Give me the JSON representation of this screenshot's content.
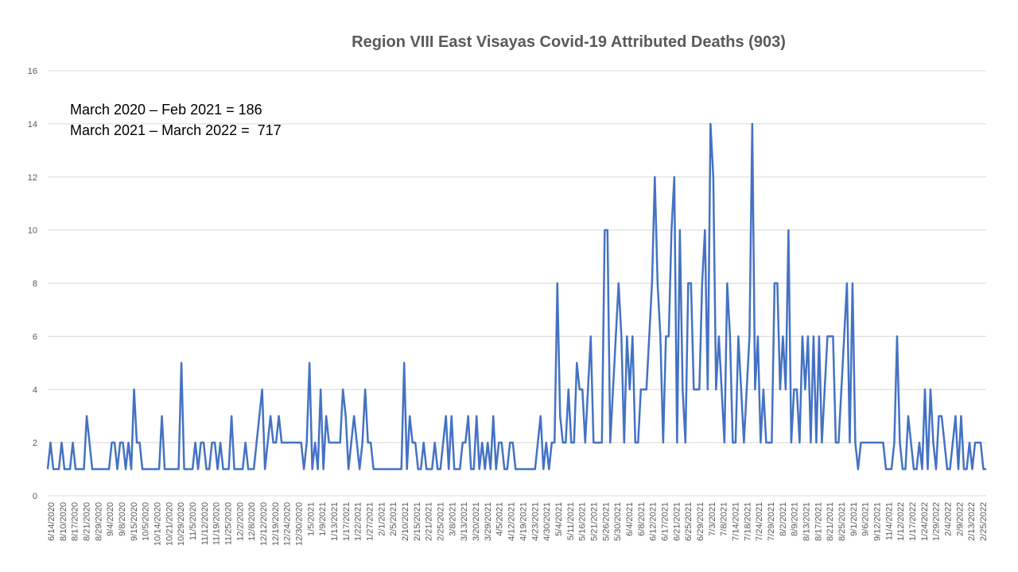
{
  "chart_data": {
    "type": "line",
    "title": "Region VIII East Visayas  Covid-19 Attributed Deaths (903)",
    "annotations": [
      "March 2020 – Feb 2021 = 186",
      "March 2021 – March 2022 =  717"
    ],
    "ylim": [
      0,
      16
    ],
    "yticks": [
      0,
      2,
      4,
      6,
      8,
      10,
      12,
      14,
      16
    ],
    "grid": true,
    "legend": "none",
    "line_color": "#4472C4",
    "x_tick_labels": [
      "6/14/2020",
      "8/10/2020",
      "8/17/2020",
      "8/21/2020",
      "8/29/2020",
      "9/4/2020",
      "9/8/2020",
      "9/15/2020",
      "10/5/2020",
      "10/14/2020",
      "10/21/2020",
      "10/29/2020",
      "11/5/2020",
      "11/12/2020",
      "11/19/2020",
      "11/25/2020",
      "12/2/2020",
      "12/8/2020",
      "12/12/2020",
      "12/19/2020",
      "12/24/2020",
      "12/30/2020",
      "1/5/2021",
      "1/9/2021",
      "1/13/2021",
      "1/17/2021",
      "1/22/2021",
      "1/27/2021",
      "2/1/2021",
      "2/5/2021",
      "2/10/2021",
      "2/15/2021",
      "2/21/2021",
      "2/25/2021",
      "3/8/2021",
      "3/13/2021",
      "3/20/2021",
      "3/29/2021",
      "4/5/2021",
      "4/12/2021",
      "4/19/2021",
      "4/23/2021",
      "4/30/2021",
      "5/4/2021",
      "5/11/2021",
      "5/16/2021",
      "5/21/2021",
      "5/26/2021",
      "5/30/2021",
      "6/4/2021",
      "6/8/2021",
      "6/12/2021",
      "6/17/2021",
      "6/21/2021",
      "6/25/2021",
      "6/29/2021",
      "7/3/2021",
      "7/8/2021",
      "7/14/2021",
      "7/18/2021",
      "7/24/2021",
      "7/29/2021",
      "8/2/2021",
      "8/9/2021",
      "8/13/2021",
      "8/17/2021",
      "8/21/2021",
      "8/25/2021",
      "9/1/2021",
      "9/6/2021",
      "9/12/2021",
      "11/4/2021",
      "1/12/2022",
      "1/17/2022",
      "1/24/2022",
      "1/29/2022",
      "2/4/2022",
      "2/9/2022",
      "2/13/2022",
      "2/25/2022"
    ],
    "values": [
      1,
      2,
      1,
      1,
      1,
      2,
      1,
      1,
      1,
      2,
      1,
      1,
      1,
      1,
      3,
      2,
      1,
      1,
      1,
      1,
      1,
      1,
      1,
      2,
      2,
      1,
      2,
      2,
      1,
      2,
      1,
      4,
      2,
      2,
      1,
      1,
      1,
      1,
      1,
      1,
      1,
      3,
      1,
      1,
      1,
      1,
      1,
      1,
      5,
      1,
      1,
      1,
      1,
      2,
      1,
      2,
      2,
      1,
      1,
      2,
      2,
      1,
      2,
      1,
      1,
      1,
      3,
      1,
      1,
      1,
      1,
      2,
      1,
      1,
      1,
      2,
      3,
      4,
      1,
      2,
      3,
      2,
      2,
      3,
      2,
      2,
      2,
      2,
      2,
      2,
      2,
      2,
      1,
      2,
      5,
      1,
      2,
      1,
      4,
      1,
      3,
      2,
      2,
      2,
      2,
      2,
      4,
      3,
      1,
      2,
      3,
      2,
      1,
      2,
      4,
      2,
      2,
      1,
      1,
      1,
      1,
      1,
      1,
      1,
      1,
      1,
      1,
      1,
      5,
      1,
      3,
      2,
      2,
      1,
      1,
      2,
      1,
      1,
      1,
      2,
      1,
      1,
      2,
      3,
      1,
      3,
      1,
      1,
      1,
      2,
      2,
      3,
      1,
      1,
      3,
      1,
      2,
      1,
      2,
      1,
      3,
      1,
      2,
      2,
      1,
      1,
      2,
      2,
      1,
      1,
      1,
      1,
      1,
      1,
      1,
      1,
      2,
      3,
      1,
      2,
      1,
      2,
      2,
      8,
      3,
      2,
      2,
      4,
      2,
      2,
      5,
      4,
      4,
      2,
      4,
      6,
      2,
      2,
      2,
      2,
      10,
      10,
      2,
      4,
      6,
      8,
      6,
      2,
      6,
      4,
      6,
      2,
      2,
      4,
      4,
      4,
      6,
      8,
      12,
      8,
      6,
      2,
      6,
      6,
      10,
      12,
      2,
      10,
      4,
      2,
      8,
      8,
      4,
      4,
      4,
      8,
      10,
      4,
      14,
      12,
      4,
      6,
      4,
      2,
      8,
      6,
      2,
      2,
      6,
      4,
      2,
      4,
      6,
      14,
      4,
      6,
      2,
      4,
      2,
      2,
      2,
      8,
      8,
      4,
      6,
      4,
      10,
      2,
      4,
      4,
      2,
      6,
      4,
      6,
      2,
      6,
      2,
      6,
      2,
      4,
      6,
      6,
      6,
      2,
      2,
      4,
      6,
      8,
      2,
      8,
      2,
      1,
      2,
      2,
      2,
      2,
      2,
      2,
      2,
      2,
      2,
      1,
      1,
      1,
      2,
      6,
      2,
      1,
      1,
      3,
      2,
      1,
      1,
      2,
      1,
      4,
      1,
      4,
      2,
      1,
      3,
      3,
      2,
      1,
      1,
      2,
      3,
      1,
      3,
      1,
      1,
      2,
      1,
      2,
      2,
      2,
      1,
      1
    ]
  }
}
